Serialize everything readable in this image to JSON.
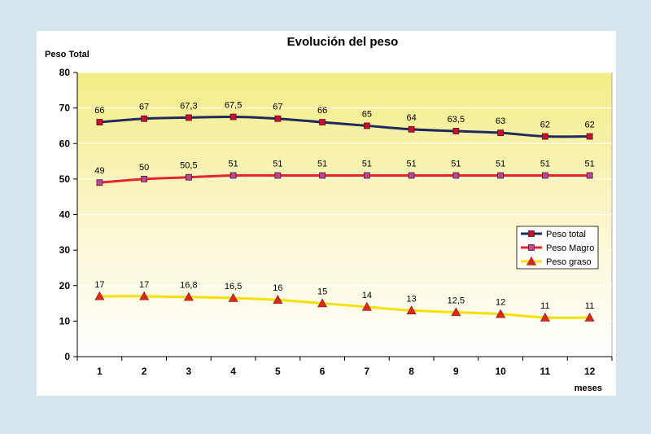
{
  "chart_data": {
    "type": "line",
    "title": "Evolución del peso",
    "ylabel": "Peso Total",
    "xlabel": "meses",
    "categories": [
      "1",
      "2",
      "3",
      "4",
      "5",
      "6",
      "7",
      "8",
      "9",
      "10",
      "11",
      "12"
    ],
    "ylim": [
      0,
      80
    ],
    "yticks": [
      0,
      10,
      20,
      30,
      40,
      50,
      60,
      70,
      80
    ],
    "grid": true,
    "legend_position": "right",
    "series": [
      {
        "name": "Peso total",
        "values": [
          66,
          67,
          67.3,
          67.5,
          67,
          66,
          65,
          64,
          63.5,
          63,
          62,
          62
        ],
        "labels": [
          "66",
          "67",
          "67,3",
          "67,5",
          "67",
          "66",
          "65",
          "64",
          "63,5",
          "63",
          "62",
          "62"
        ],
        "line_color": "#1f2a5c",
        "marker": "square",
        "marker_color": "#c8102e"
      },
      {
        "name": "Peso Magro",
        "values": [
          49,
          50,
          50.5,
          51,
          51,
          51,
          51,
          51,
          51,
          51,
          51,
          51
        ],
        "labels": [
          "49",
          "50",
          "50,5",
          "51",
          "51",
          "51",
          "51",
          "51",
          "51",
          "51",
          "51",
          "51"
        ],
        "line_color": "#e3262b",
        "marker": "square",
        "marker_color": "#b24b9a"
      },
      {
        "name": "Peso graso",
        "values": [
          17,
          17,
          16.8,
          16.5,
          16,
          15,
          14,
          13,
          12.5,
          12,
          11,
          11
        ],
        "labels": [
          "17",
          "17",
          "16,8",
          "16,5",
          "16",
          "15",
          "14",
          "13",
          "12,5",
          "12",
          "11",
          "11"
        ],
        "line_color": "#f5e000",
        "marker": "triangle",
        "marker_color": "#d62a1c"
      }
    ]
  }
}
